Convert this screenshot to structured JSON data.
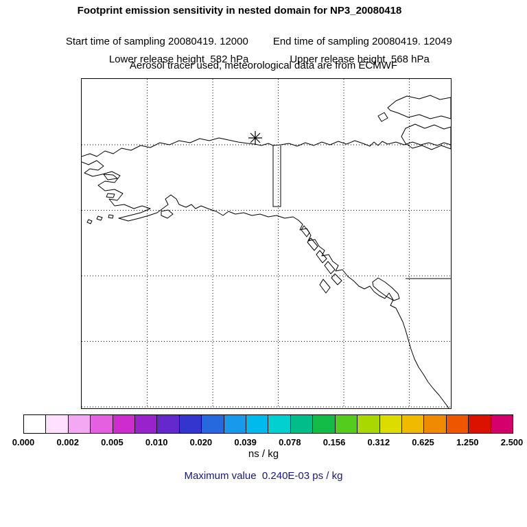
{
  "header": {
    "title": "Footprint emission sensitivity in nested domain for NP3_20080418",
    "start_time": "Start time of sampling 20080419. 12000",
    "end_time": "End time of sampling 20080419. 12049",
    "lower_release": "Lower release height  582 hPa",
    "upper_release": "Upper release height  568 hPa",
    "tracer_info": "Aerosol tracer used, meteorological data are from ECMWF"
  },
  "map": {
    "marker": {
      "symbol": "asterisk",
      "meaning": "release location"
    }
  },
  "colorbar": {
    "units": "ns / kg",
    "tick_labels": [
      "0.000",
      "0.002",
      "0.005",
      "0.010",
      "0.020",
      "0.039",
      "0.078",
      "0.156",
      "0.312",
      "0.625",
      "1.250",
      "2.500"
    ],
    "segment_colors": [
      "#ffffff",
      "#ffe0ff",
      "#f2a8f2",
      "#e460e0",
      "#ce2cce",
      "#9a22cc",
      "#6428cd",
      "#3434ce",
      "#2668de",
      "#1899ec",
      "#00baee",
      "#00d0d0",
      "#00bd8a",
      "#12bc46",
      "#54cc1c",
      "#a8d800",
      "#dcdc00",
      "#f0ba00",
      "#f08a00",
      "#ee5600",
      "#dc1200",
      "#d4006c"
    ]
  },
  "footer": {
    "max_value": "Maximum value  0.240E-03 ps / kg"
  },
  "colors": {
    "figure_text": "#000000",
    "map_lines": "#000000",
    "max_value_text": "#15157e"
  },
  "chart_data": {
    "type": "heatmap",
    "title": "Footprint emission sensitivity in nested domain for NP3_20080418",
    "legend_levels": [
      0.0,
      0.002,
      0.005,
      0.01,
      0.02,
      0.039,
      0.078,
      0.156,
      0.312,
      0.625,
      1.25,
      2.5
    ],
    "units": "ns / kg",
    "maximum_value": "0.240E-03 ps / kg",
    "notes": "No sensitivity field visible above lowest contour level; map shows coastlines, lat/lon grid and release-point asterisk"
  }
}
